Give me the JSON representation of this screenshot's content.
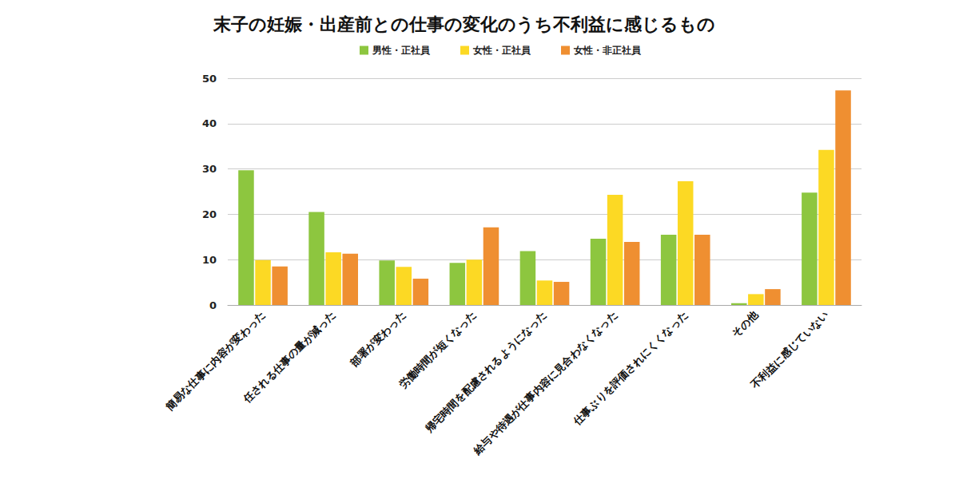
{
  "chart_data": {
    "type": "bar",
    "title": "末子の妊娠・出産前との仕事の変化のうち不利益に感じるもの",
    "categories": [
      "簡易な仕事に内容が変わった",
      "任される仕事の量が減った",
      "部署が変わった",
      "労働時間が短くなった",
      "帰宅時間を配慮されるようになった",
      "給与や待遇が仕事内容に見合わなくなった",
      "仕事ぶりを評価されにくくなった",
      "その他",
      "不利益に感じていない"
    ],
    "series": [
      {
        "name": "男性・正社員",
        "color": "#8dc63f",
        "values": [
          29.7,
          20.5,
          9.8,
          9.3,
          11.9,
          14.6,
          15.5,
          0.4,
          24.8
        ]
      },
      {
        "name": "女性・正社員",
        "color": "#fcd924",
        "values": [
          9.9,
          11.6,
          8.4,
          10.0,
          5.4,
          24.3,
          27.3,
          2.4,
          34.2
        ]
      },
      {
        "name": "女性・非正社員",
        "color": "#ef8f31",
        "values": [
          8.5,
          11.3,
          5.8,
          17.1,
          5.1,
          13.9,
          15.5,
          3.5,
          47.3
        ]
      }
    ],
    "ylim": [
      0,
      50
    ],
    "yticks": [
      0,
      10,
      20,
      30,
      40,
      50
    ],
    "grid": true,
    "legend": "top"
  }
}
